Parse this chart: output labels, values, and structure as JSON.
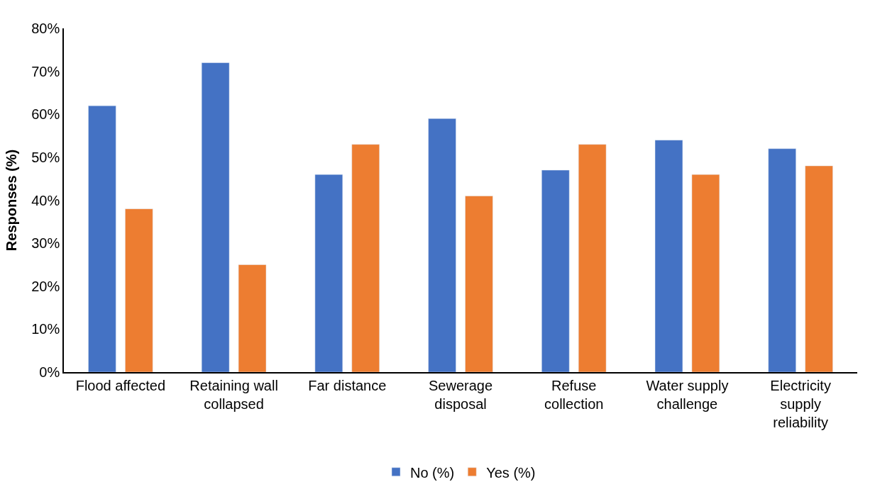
{
  "chart_data": {
    "type": "bar",
    "ylabel": "Responses (%)",
    "categories": [
      "Flood affected",
      "Retaining wall collapsed",
      "Far distance",
      "Sewerage disposal",
      "Refuse collection",
      "Water supply challenge",
      "Electricity supply reliability"
    ],
    "series": [
      {
        "name": "No (%)",
        "color": "#4472c4",
        "values": [
          62,
          72,
          46,
          59,
          47,
          54,
          52
        ]
      },
      {
        "name": "Yes (%)",
        "color": "#ed7d31",
        "values": [
          38,
          25,
          53,
          41,
          53,
          46,
          48
        ]
      }
    ],
    "ylim": [
      0,
      80
    ],
    "yticks": [
      {
        "value": 0,
        "label": "0%"
      },
      {
        "value": 10,
        "label": "10%"
      },
      {
        "value": 20,
        "label": "20%"
      },
      {
        "value": 30,
        "label": "30%"
      },
      {
        "value": 40,
        "label": "40%"
      },
      {
        "value": 50,
        "label": "50%"
      },
      {
        "value": 60,
        "label": "60%"
      },
      {
        "value": 70,
        "label": "70%"
      },
      {
        "value": 80,
        "label": "80%"
      }
    ],
    "legend": "bottom"
  }
}
